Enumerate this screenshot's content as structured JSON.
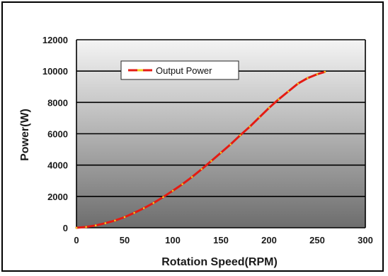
{
  "chart_data": {
    "type": "line",
    "title": "",
    "xlabel": "Rotation Speed(RPM)",
    "ylabel": "Power(W)",
    "xlim": [
      0,
      300
    ],
    "ylim": [
      0,
      12000
    ],
    "xticks": [
      0,
      50,
      100,
      150,
      200,
      250,
      300
    ],
    "yticks": [
      0,
      2000,
      4000,
      6000,
      8000,
      10000,
      12000
    ],
    "grid": "horizontal",
    "legend_position": "top-left",
    "series": [
      {
        "name": "Output Power",
        "color": "#e41b13",
        "marker_color": "#f0d020",
        "x": [
          0,
          10,
          20,
          30,
          40,
          50,
          60,
          70,
          80,
          90,
          100,
          110,
          120,
          130,
          140,
          150,
          160,
          170,
          180,
          190,
          200,
          210,
          220,
          230,
          240,
          250,
          258
        ],
        "y": [
          0,
          50,
          150,
          290,
          460,
          680,
          950,
          1250,
          1580,
          1960,
          2360,
          2780,
          3240,
          3740,
          4260,
          4790,
          5320,
          5900,
          6450,
          7050,
          7650,
          8200,
          8700,
          9200,
          9550,
          9800,
          9950
        ]
      }
    ]
  }
}
